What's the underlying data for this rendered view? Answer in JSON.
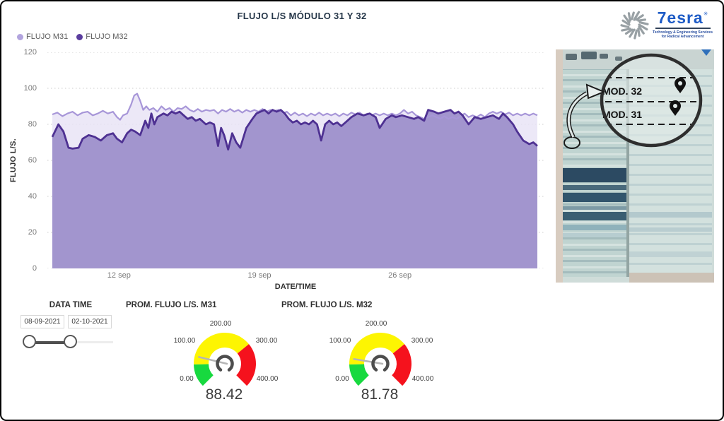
{
  "title": "FLUJO L/S MÓDULO 31 Y 32",
  "logo": {
    "brand": "7esra",
    "mark": "✳",
    "tagline1": "Technology & Engineering Services",
    "tagline2": "for Radical Advancement"
  },
  "legend": [
    {
      "label": "FLUJO M31",
      "color": "#b2a4de"
    },
    {
      "label": "FLUJO M32",
      "color": "#5a3d9e"
    }
  ],
  "chart_data": {
    "type": "area",
    "title": "FLUJO L/S MÓDULO 31 Y 32",
    "xlabel": "DATE/TIME",
    "ylabel": "FLUJO L/S.",
    "ylim": [
      0,
      120
    ],
    "yticks": [
      0,
      20,
      40,
      60,
      80,
      100,
      120
    ],
    "x_range_days": [
      0,
      24
    ],
    "x_start_date": "08-09-2021",
    "x_end_date": "02-10-2021",
    "xticks": [
      {
        "label": "12 sep",
        "day": 3.3
      },
      {
        "label": "19 sep",
        "day": 10.25
      },
      {
        "label": "26 sep",
        "day": 17.2
      }
    ],
    "grid": "dotted-horizontal",
    "legend_position": "top-left",
    "series": [
      {
        "name": "FLUJO M31",
        "line_color": "#a796d8",
        "fill_color": "#e7e2f5",
        "fill_opacity": 0.8,
        "points": [
          [
            0,
            85.5
          ],
          [
            0.25,
            86.5
          ],
          [
            0.5,
            84.5
          ],
          [
            0.75,
            86
          ],
          [
            1,
            87
          ],
          [
            1.25,
            85
          ],
          [
            1.5,
            86.5
          ],
          [
            1.75,
            87
          ],
          [
            2,
            85
          ],
          [
            2.25,
            86
          ],
          [
            2.5,
            87.5
          ],
          [
            2.75,
            86
          ],
          [
            3,
            87
          ],
          [
            3.2,
            84
          ],
          [
            3.35,
            82.5
          ],
          [
            3.5,
            85
          ],
          [
            3.7,
            86
          ],
          [
            3.9,
            91
          ],
          [
            4.05,
            96
          ],
          [
            4.2,
            97
          ],
          [
            4.35,
            93
          ],
          [
            4.5,
            88
          ],
          [
            4.65,
            90
          ],
          [
            4.8,
            88
          ],
          [
            5,
            89
          ],
          [
            5.2,
            87
          ],
          [
            5.4,
            90
          ],
          [
            5.6,
            88
          ],
          [
            5.8,
            89
          ],
          [
            6,
            87
          ],
          [
            6.2,
            89
          ],
          [
            6.4,
            88.5
          ],
          [
            6.6,
            90
          ],
          [
            6.8,
            88
          ],
          [
            7,
            87
          ],
          [
            7.2,
            88.5
          ],
          [
            7.4,
            87
          ],
          [
            7.6,
            88
          ],
          [
            7.8,
            87.5
          ],
          [
            8,
            88
          ],
          [
            8.2,
            86
          ],
          [
            8.4,
            88
          ],
          [
            8.6,
            87
          ],
          [
            8.8,
            88.5
          ],
          [
            9,
            87
          ],
          [
            9.2,
            88
          ],
          [
            9.4,
            86.5
          ],
          [
            9.6,
            88
          ],
          [
            9.8,
            87
          ],
          [
            10,
            88
          ],
          [
            10.2,
            87
          ],
          [
            10.4,
            88.5
          ],
          [
            10.6,
            87
          ],
          [
            10.8,
            88
          ],
          [
            11,
            87.5
          ],
          [
            11.2,
            88
          ],
          [
            11.4,
            86
          ],
          [
            11.6,
            87
          ],
          [
            11.8,
            85
          ],
          [
            12,
            86.5
          ],
          [
            12.2,
            85
          ],
          [
            12.4,
            86
          ],
          [
            12.6,
            84.5
          ],
          [
            12.8,
            86
          ],
          [
            13,
            85
          ],
          [
            13.2,
            86.5
          ],
          [
            13.4,
            85
          ],
          [
            13.6,
            86
          ],
          [
            13.8,
            85
          ],
          [
            14,
            86
          ],
          [
            14.2,
            84.5
          ],
          [
            14.4,
            86
          ],
          [
            14.6,
            85
          ],
          [
            14.8,
            86.5
          ],
          [
            15,
            85.5
          ],
          [
            15.2,
            86.5
          ],
          [
            15.4,
            85
          ],
          [
            15.6,
            86
          ],
          [
            15.8,
            85
          ],
          [
            16,
            86
          ],
          [
            16.2,
            85
          ],
          [
            16.4,
            86
          ],
          [
            16.6,
            85
          ],
          [
            16.8,
            86
          ],
          [
            17,
            85
          ],
          [
            17.2,
            86
          ],
          [
            17.4,
            88
          ],
          [
            17.6,
            86
          ],
          [
            17.8,
            87
          ],
          [
            18,
            85
          ],
          [
            18.2,
            84
          ],
          [
            18.4,
            83
          ],
          [
            18.6,
            84
          ],
          [
            18.8,
            85
          ],
          [
            19,
            84
          ],
          [
            19.2,
            83
          ],
          [
            19.4,
            84.5
          ],
          [
            19.6,
            83
          ],
          [
            19.8,
            84
          ],
          [
            20,
            83
          ],
          [
            20.2,
            84.5
          ],
          [
            20.4,
            86
          ],
          [
            20.6,
            84
          ],
          [
            20.8,
            85
          ],
          [
            21,
            84
          ],
          [
            21.2,
            85.5
          ],
          [
            21.4,
            84
          ],
          [
            21.6,
            86
          ],
          [
            21.8,
            87
          ],
          [
            22,
            86
          ],
          [
            22.2,
            87
          ],
          [
            22.4,
            85.5
          ],
          [
            22.6,
            86.5
          ],
          [
            22.8,
            85
          ],
          [
            23,
            86
          ],
          [
            23.2,
            85
          ],
          [
            23.4,
            86
          ],
          [
            23.6,
            85
          ],
          [
            23.8,
            86
          ],
          [
            24,
            85
          ]
        ]
      },
      {
        "name": "FLUJO M32",
        "line_color": "#4e3192",
        "fill_color": "#a295ce",
        "fill_opacity": 1,
        "points": [
          [
            0,
            73
          ],
          [
            0.3,
            80
          ],
          [
            0.55,
            76
          ],
          [
            0.8,
            67
          ],
          [
            1,
            66.5
          ],
          [
            1.3,
            67
          ],
          [
            1.5,
            72
          ],
          [
            1.8,
            74
          ],
          [
            2.1,
            73
          ],
          [
            2.4,
            71
          ],
          [
            2.7,
            74
          ],
          [
            3,
            75
          ],
          [
            3.2,
            72
          ],
          [
            3.45,
            70
          ],
          [
            3.7,
            75
          ],
          [
            3.9,
            77
          ],
          [
            4.1,
            76
          ],
          [
            4.35,
            74
          ],
          [
            4.6,
            82
          ],
          [
            4.75,
            78
          ],
          [
            4.9,
            86
          ],
          [
            5.05,
            80
          ],
          [
            5.2,
            84
          ],
          [
            5.5,
            86
          ],
          [
            5.7,
            85
          ],
          [
            5.9,
            87
          ],
          [
            6.1,
            86
          ],
          [
            6.3,
            87
          ],
          [
            6.5,
            85
          ],
          [
            6.7,
            83
          ],
          [
            6.9,
            84
          ],
          [
            7.1,
            82
          ],
          [
            7.3,
            83
          ],
          [
            7.6,
            80
          ],
          [
            7.8,
            81
          ],
          [
            8,
            80
          ],
          [
            8.2,
            68
          ],
          [
            8.35,
            78
          ],
          [
            8.5,
            74
          ],
          [
            8.7,
            66
          ],
          [
            8.9,
            75
          ],
          [
            9.1,
            70
          ],
          [
            9.3,
            67
          ],
          [
            9.6,
            78
          ],
          [
            9.9,
            83
          ],
          [
            10.1,
            86
          ],
          [
            10.3,
            87
          ],
          [
            10.5,
            88
          ],
          [
            10.7,
            86
          ],
          [
            10.9,
            88
          ],
          [
            11.1,
            87
          ],
          [
            11.3,
            88
          ],
          [
            11.5,
            86
          ],
          [
            11.7,
            83
          ],
          [
            11.9,
            81
          ],
          [
            12.1,
            82
          ],
          [
            12.3,
            80
          ],
          [
            12.5,
            81
          ],
          [
            12.7,
            80
          ],
          [
            12.9,
            82
          ],
          [
            13.1,
            80
          ],
          [
            13.3,
            71
          ],
          [
            13.5,
            80
          ],
          [
            13.7,
            82
          ],
          [
            13.9,
            80
          ],
          [
            14.1,
            81
          ],
          [
            14.3,
            79
          ],
          [
            14.5,
            81
          ],
          [
            14.8,
            84
          ],
          [
            15.1,
            86
          ],
          [
            15.4,
            85
          ],
          [
            15.7,
            86
          ],
          [
            16,
            84
          ],
          [
            16.2,
            78
          ],
          [
            16.5,
            83
          ],
          [
            16.8,
            85
          ],
          [
            17,
            84
          ],
          [
            17.3,
            85
          ],
          [
            17.6,
            84
          ],
          [
            17.9,
            83
          ],
          [
            18.1,
            84
          ],
          [
            18.4,
            82
          ],
          [
            18.6,
            88
          ],
          [
            18.9,
            87
          ],
          [
            19.1,
            86
          ],
          [
            19.4,
            87
          ],
          [
            19.7,
            88
          ],
          [
            19.9,
            86
          ],
          [
            20.1,
            87
          ],
          [
            20.3,
            85
          ],
          [
            20.6,
            80
          ],
          [
            20.9,
            84
          ],
          [
            21.2,
            83
          ],
          [
            21.5,
            84
          ],
          [
            21.8,
            85
          ],
          [
            22.1,
            83
          ],
          [
            22.3,
            86
          ],
          [
            22.5,
            84
          ],
          [
            22.8,
            80
          ],
          [
            23,
            76
          ],
          [
            23.3,
            71
          ],
          [
            23.6,
            69
          ],
          [
            23.8,
            70
          ],
          [
            24,
            68
          ]
        ]
      }
    ]
  },
  "map": {
    "label_mod32": "MOD. 32",
    "label_mod31": "MOD. 31"
  },
  "slider": {
    "heading": "DATA TIME",
    "start_date": "08-09-2021",
    "end_date": "02-10-2021"
  },
  "gauges": {
    "min": 0,
    "max": 400,
    "scale_labels": [
      "0.00",
      "100.00",
      "200.00",
      "300.00",
      "400.00"
    ],
    "segments": [
      {
        "from": 0,
        "to": 65,
        "color": "#17d93f"
      },
      {
        "from": 65,
        "to": 275,
        "color": "#fdf502"
      },
      {
        "from": 275,
        "to": 400,
        "color": "#f5121d"
      }
    ],
    "items": [
      {
        "title": "PROM. FLUJO L/S. M31",
        "value": 88.42,
        "value_label": "88.42"
      },
      {
        "title": "PROM. FLUJO L/S. M32",
        "value": 81.78,
        "value_label": "81.78"
      }
    ]
  }
}
